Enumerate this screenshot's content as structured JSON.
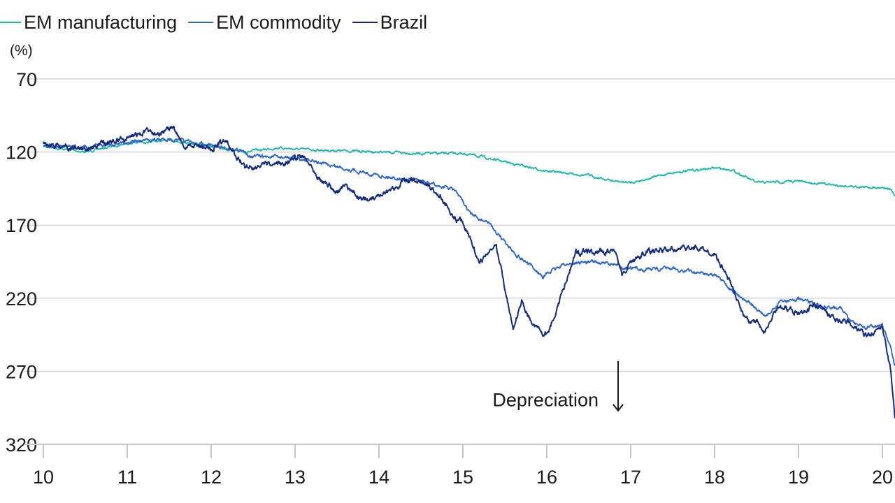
{
  "chart_data": {
    "type": "line",
    "title": "",
    "xlabel": "",
    "ylabel": "(%)",
    "y_inverted": true,
    "ylim": [
      70,
      320
    ],
    "xlim": [
      10,
      20.15
    ],
    "yticks": [
      "70",
      "120",
      "170",
      "220",
      "270",
      "320"
    ],
    "xticks": [
      "10",
      "11",
      "12",
      "13",
      "14",
      "15",
      "16",
      "17",
      "18",
      "19",
      "20"
    ],
    "grid": "horizontal",
    "legend_position": "top-left",
    "annotation": {
      "text": "Depreciation",
      "x": 16.85,
      "y": 294,
      "arrow_from": 263,
      "arrow_to": 297
    },
    "series": [
      {
        "name": "EM manufacturing",
        "color": "#1fb5a8",
        "x": [
          10.0,
          10.5,
          11.0,
          11.5,
          11.8,
          12.0,
          12.4,
          12.8,
          13.0,
          13.5,
          14.0,
          14.5,
          15.0,
          15.2,
          15.6,
          16.0,
          16.5,
          16.8,
          17.0,
          17.5,
          18.0,
          18.2,
          18.5,
          19.0,
          19.5,
          19.8,
          20.0,
          20.1,
          20.15
        ],
        "values": [
          116,
          120,
          114,
          112,
          114,
          116,
          120,
          117,
          118,
          119,
          120,
          121,
          121,
          123,
          128,
          133,
          136,
          140,
          141,
          134,
          131,
          132,
          141,
          140,
          143,
          144,
          144,
          146,
          150
        ]
      },
      {
        "name": "EM commodity",
        "color": "#2e64c4",
        "x": [
          10.0,
          10.5,
          11.0,
          11.5,
          11.8,
          12.0,
          12.3,
          12.5,
          13.0,
          13.5,
          14.0,
          14.5,
          14.9,
          15.1,
          15.3,
          15.6,
          15.95,
          16.2,
          16.5,
          16.8,
          17.0,
          17.5,
          18.0,
          18.2,
          18.4,
          18.6,
          18.8,
          19.0,
          19.3,
          19.5,
          19.6,
          19.8,
          20.0,
          20.1,
          20.15
        ],
        "values": [
          115,
          117,
          113,
          111,
          114,
          116,
          118,
          123,
          124,
          130,
          136,
          140,
          146,
          163,
          168,
          188,
          205,
          197,
          195,
          197,
          200,
          200,
          204,
          215,
          222,
          233,
          222,
          221,
          226,
          226,
          235,
          240,
          238,
          255,
          265
        ]
      },
      {
        "name": "Brazil",
        "color": "#142a7c",
        "x": [
          10.0,
          10.5,
          11.0,
          11.25,
          11.4,
          11.55,
          11.7,
          11.8,
          12.0,
          12.15,
          12.4,
          12.8,
          13.0,
          13.1,
          13.3,
          13.5,
          13.6,
          13.8,
          14.0,
          14.3,
          14.5,
          14.7,
          14.9,
          15.0,
          15.15,
          15.2,
          15.4,
          15.6,
          15.7,
          15.85,
          16.0,
          16.15,
          16.35,
          16.6,
          16.8,
          16.9,
          17.0,
          17.2,
          17.5,
          17.8,
          18.0,
          18.15,
          18.35,
          18.5,
          18.6,
          18.75,
          19.0,
          19.2,
          19.45,
          19.6,
          19.8,
          20.0,
          20.1,
          20.15
        ],
        "values": [
          114,
          118,
          110,
          106,
          106,
          104,
          118,
          115,
          118,
          112,
          130,
          129,
          124,
          122,
          138,
          148,
          143,
          153,
          152,
          140,
          139,
          148,
          165,
          168,
          188,
          195,
          184,
          242,
          222,
          240,
          245,
          222,
          188,
          189,
          186,
          205,
          195,
          188,
          187,
          185,
          190,
          205,
          233,
          237,
          244,
          225,
          230,
          225,
          235,
          236,
          246,
          240,
          270,
          302
        ]
      }
    ]
  }
}
